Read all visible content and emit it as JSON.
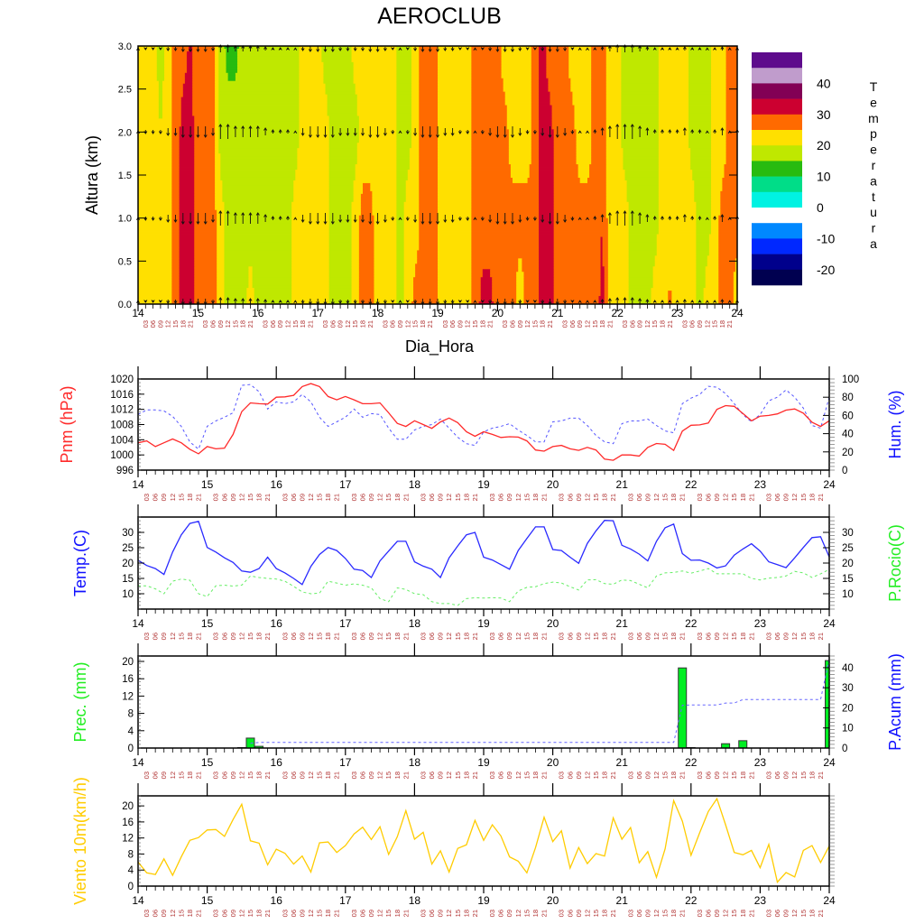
{
  "x_axis": {
    "days": [
      "14",
      "15",
      "16",
      "17",
      "18",
      "19",
      "20",
      "21",
      "22",
      "23",
      "24"
    ],
    "hours": [
      "03",
      "06",
      "09",
      "12",
      "15",
      "18",
      "21"
    ]
  },
  "colors": {
    "pnm": "#ff2a2a",
    "hum": "#5555ff",
    "temp": "#2a2aff",
    "dew": "#66ee66",
    "prec_bar": "#00ee22",
    "acum": "#6666ff",
    "wind": "#ffcc00",
    "hour_label": "#b03030"
  },
  "chart_data": [
    {
      "type": "heatmap",
      "title": "AEROCLUB",
      "xlabel": "Dia_Hora",
      "ylabel": "Altura (km)",
      "ylim": [
        0,
        3
      ],
      "ytick_labels": [
        "0.0",
        "0.5",
        "1.0",
        "1.5",
        "2.0",
        "2.5",
        "3.0"
      ],
      "levels_km": [
        0,
        1,
        2,
        3
      ],
      "temperature": [
        [
          22,
          22,
          22,
          22,
          22,
          27,
          32,
          32,
          27,
          27,
          27,
          22,
          18,
          18,
          18,
          22,
          18,
          18,
          18,
          18,
          18,
          22,
          22,
          22,
          22,
          22,
          18,
          18,
          18,
          22,
          27,
          27,
          22,
          22,
          22,
          18,
          22,
          27,
          27,
          27,
          25,
          22,
          22,
          22,
          22,
          27,
          32,
          32,
          27,
          27,
          27,
          22,
          27,
          27,
          32,
          32,
          27,
          27,
          27,
          27,
          27,
          27,
          32,
          22,
          22,
          22,
          18,
          18,
          18,
          22,
          22,
          26,
          22,
          22,
          22,
          18,
          22,
          22,
          27,
          27,
          22
        ],
        [
          22,
          22,
          22,
          22,
          22,
          27,
          32,
          32,
          27,
          27,
          27,
          22,
          18,
          18,
          18,
          18,
          18,
          18,
          18,
          18,
          18,
          22,
          22,
          22,
          22,
          22,
          18,
          18,
          18,
          22,
          27,
          27,
          22,
          22,
          22,
          18,
          22,
          22,
          27,
          27,
          25,
          22,
          22,
          22,
          22,
          27,
          27,
          27,
          27,
          27,
          27,
          27,
          27,
          27,
          32,
          32,
          27,
          27,
          27,
          27,
          27,
          27,
          30,
          22,
          22,
          22,
          18,
          18,
          18,
          18,
          22,
          22,
          22,
          22,
          22,
          18,
          18,
          22,
          27,
          27,
          27
        ],
        [
          22,
          22,
          22,
          20,
          22,
          27,
          32,
          32,
          27,
          27,
          27,
          18,
          18,
          18,
          18,
          18,
          18,
          18,
          18,
          18,
          18,
          18,
          22,
          22,
          22,
          22,
          18,
          18,
          18,
          18,
          22,
          22,
          22,
          22,
          22,
          18,
          18,
          22,
          27,
          27,
          25,
          22,
          22,
          22,
          22,
          27,
          27,
          27,
          27,
          27,
          22,
          22,
          22,
          27,
          32,
          32,
          27,
          27,
          27,
          22,
          22,
          27,
          27,
          22,
          22,
          18,
          18,
          18,
          18,
          18,
          22,
          22,
          22,
          22,
          18,
          18,
          18,
          22,
          22,
          27,
          27
        ],
        [
          22,
          22,
          22,
          18,
          22,
          28,
          28,
          31,
          27,
          27,
          27,
          18,
          13,
          13,
          18,
          18,
          18,
          18,
          18,
          18,
          18,
          18,
          22,
          22,
          22,
          18,
          18,
          18,
          18,
          22,
          22,
          22,
          22,
          22,
          22,
          18,
          18,
          22,
          27,
          27,
          25,
          22,
          22,
          22,
          22,
          27,
          27,
          27,
          27,
          22,
          22,
          22,
          22,
          27,
          32,
          27,
          27,
          27,
          22,
          22,
          22,
          27,
          27,
          22,
          22,
          18,
          18,
          18,
          18,
          18,
          22,
          22,
          22,
          22,
          18,
          18,
          18,
          22,
          22,
          27,
          27
        ]
      ],
      "wind_vertical": [
        0,
        -1,
        -1,
        -1,
        -2,
        -2,
        -3,
        -3,
        -3,
        -3,
        -2,
        4,
        4,
        3,
        3,
        3,
        3,
        2,
        1,
        1,
        1,
        0,
        -2,
        -3,
        -3,
        -3,
        -3,
        -2,
        -2,
        -2,
        -2,
        -3,
        -3,
        -2,
        -1,
        0,
        -1,
        -2,
        -3,
        -3,
        -3,
        -2,
        -2,
        -1,
        -1,
        0,
        -1,
        -2,
        -3,
        -3,
        -3,
        -2,
        -1,
        -1,
        -2,
        -3,
        -3,
        -2,
        -1,
        0,
        0,
        1,
        2,
        3,
        4,
        4,
        4,
        3,
        2,
        1,
        1,
        1,
        1,
        2,
        1,
        1,
        0,
        1,
        2,
        0,
        1
      ],
      "colorbar": {
        "label": "Temperatura",
        "colors": [
          "#5e0b8c",
          "#c09ccc",
          "#820055",
          "#cc0030",
          "#ff6a00",
          "#ffe000",
          "#bfe800",
          "#27bb10",
          "#00dd88",
          "#00f2e2",
          "#ffffff",
          "#0088ff",
          "#0028ff",
          "#00008c",
          "#000050"
        ],
        "bounds": [
          -20,
          -15,
          -10,
          -5,
          0,
          5,
          10,
          15,
          20,
          25,
          30,
          35,
          40,
          45
        ],
        "tick_labels": [
          "40",
          "30",
          "20",
          "10",
          "0",
          "-10",
          "-20"
        ]
      }
    },
    {
      "type": "line",
      "ylabel_left": "Pnm (hPa)",
      "ylabel_right": "Hum. (%)",
      "ylim_left": [
        996,
        1020
      ],
      "ylim_right": [
        0,
        100
      ],
      "yticks_left": [
        "996",
        "1000",
        "1004",
        "1008",
        "1012",
        "1016",
        "1020"
      ],
      "yticks_right": [
        "0",
        "20",
        "40",
        "60",
        "80",
        "100"
      ],
      "series": [
        {
          "name": "Pnm",
          "values": [
            1003.2,
            1003.7,
            1002.2,
            1003.2,
            1004.2,
            1003.2,
            1001.5,
            1000.3,
            1002.2,
            1001.6,
            1001.8,
            1005.4,
            1011.4,
            1013.7,
            1013.5,
            1013.4,
            1015.2,
            1015.3,
            1015.7,
            1018,
            1018.8,
            1018,
            1015.4,
            1014.5,
            1015.4,
            1014.5,
            1013.5,
            1013.5,
            1013.7,
            1011.1,
            1008.3,
            1007.5,
            1009,
            1008,
            1007,
            1008.7,
            1009.7,
            1008.5,
            1006.1,
            1004.9,
            1006.1,
            1005.4,
            1004.6,
            1004.8,
            1004.7,
            1003.7,
            1001.3,
            1001,
            1002.2,
            1002.5,
            1001.6,
            1001.2,
            1002,
            1001.3,
            998.9,
            998.6,
            1000,
            1000,
            999.7,
            1002,
            1003,
            1002.8,
            1001.2,
            1006.3,
            1007.8,
            1007.9,
            1008.4,
            1012,
            1013,
            1012.8,
            1010.9,
            1009,
            1010.2,
            1010.4,
            1010.8,
            1011.8,
            1012.1,
            1011,
            1008.6,
            1007.5,
            1009
          ]
        },
        {
          "name": "Hum",
          "values": [
            61,
            66,
            66,
            65,
            59,
            48,
            31,
            23,
            48,
            54,
            58,
            63,
            93,
            94,
            86,
            67,
            75,
            73,
            75,
            83,
            75,
            58,
            48,
            53,
            58,
            67,
            58,
            62,
            61,
            46,
            34,
            34,
            44,
            48,
            50,
            56,
            46,
            36,
            29,
            27,
            42,
            46,
            48,
            51,
            44,
            38,
            31,
            31,
            53,
            54,
            57,
            57,
            49,
            38,
            31,
            29,
            51,
            54,
            54,
            56,
            49,
            43,
            41,
            73,
            79,
            83,
            92,
            91,
            84,
            73,
            61,
            53,
            61,
            76,
            80,
            88,
            80,
            68,
            49,
            46,
            80
          ]
        }
      ]
    },
    {
      "type": "line",
      "ylabel_left": "Temp.(C)",
      "ylabel_right": "P.Rocio(C)",
      "ylim": [
        5,
        35
      ],
      "yticks_left": [
        "10",
        "15",
        "20",
        "25",
        "30"
      ],
      "yticks_right": [
        "10",
        "15",
        "20",
        "25",
        "30"
      ],
      "series": [
        {
          "name": "Temp",
          "values": [
            20.9,
            19.2,
            18.2,
            16.3,
            23.6,
            29.2,
            32.9,
            33.6,
            25.1,
            23.6,
            21.7,
            20.2,
            17.4,
            17,
            18.2,
            21.9,
            18.2,
            16.8,
            15,
            13,
            18.9,
            22.8,
            25.1,
            24.1,
            21.5,
            18,
            17.6,
            15.3,
            20.7,
            23.9,
            27.1,
            27.1,
            20.4,
            19,
            18,
            15.3,
            21.7,
            25.6,
            29.2,
            30,
            21.9,
            21,
            19.5,
            18,
            24.1,
            28,
            31.8,
            31.8,
            24.4,
            24.1,
            21.9,
            19.9,
            26.4,
            30.5,
            33.9,
            33.8,
            25.8,
            24.6,
            22.9,
            20.7,
            27.1,
            31.5,
            32.7,
            23.1,
            20.9,
            21,
            20,
            18.4,
            19.1,
            22.6,
            24.6,
            26.3,
            23.9,
            20.4,
            19.5,
            18.5,
            21.7,
            25.1,
            28.3,
            28.6,
            22
          ]
        },
        {
          "name": "P.Rocio",
          "values": [
            12.6,
            12.6,
            11.6,
            10,
            14.1,
            14.8,
            14.4,
            10,
            9.1,
            12.6,
            12.8,
            12.5,
            12.8,
            15.8,
            15.3,
            15,
            14.8,
            14.1,
            12.4,
            10.6,
            10,
            10.2,
            14.1,
            13.5,
            12.8,
            13.2,
            12.8,
            11.9,
            8.4,
            7.4,
            11.9,
            11.4,
            10,
            9.7,
            7.4,
            6.8,
            6.8,
            6.2,
            8.4,
            8.7,
            8.6,
            8.7,
            8.6,
            7.4,
            10.9,
            12.1,
            12.3,
            13.3,
            13.8,
            13.5,
            12.3,
            11.2,
            14.5,
            14.6,
            13.3,
            13.1,
            14.5,
            14.3,
            13.1,
            11.9,
            15.8,
            16.8,
            16.9,
            17.4,
            16.7,
            17.4,
            18.2,
            16.5,
            16.5,
            16.5,
            16.5,
            15,
            14.5,
            15.1,
            15.3,
            15.8,
            17.3,
            16.8,
            15.3,
            16.5,
            17.9
          ]
        }
      ]
    },
    {
      "type": "bar",
      "ylabel_left": "Prec. (mm)",
      "ylabel_right": "P.Acum (mm)",
      "ylim_left": [
        0,
        21.25
      ],
      "ylim_right": [
        0,
        45.8
      ],
      "yticks_left": [
        "0",
        "4",
        "8",
        "12",
        "16",
        "20"
      ],
      "yticks_right": [
        "0",
        "10",
        "20",
        "30",
        "40"
      ],
      "series": [
        {
          "name": "Prec",
          "values": [
            0,
            0,
            0,
            0,
            0,
            0,
            0,
            0,
            0,
            0,
            0,
            0,
            0.1,
            2.3,
            0.4,
            0,
            0,
            0,
            0,
            0,
            0,
            0,
            0,
            0,
            0,
            0,
            0,
            0,
            0,
            0,
            0,
            0,
            0,
            0,
            0,
            0,
            0,
            0,
            0,
            0,
            0,
            0,
            0,
            0,
            0,
            0,
            0,
            0,
            0,
            0,
            0,
            0,
            0,
            0,
            0,
            0,
            0,
            0,
            0,
            0,
            0,
            0,
            0,
            18.5,
            0.1,
            0,
            0,
            0,
            1.0,
            0,
            1.7,
            0,
            0,
            0,
            0,
            0,
            0,
            0,
            0,
            0,
            20.2
          ]
        },
        {
          "name": "P.Acum",
          "values": [
            null,
            null,
            null,
            null,
            null,
            null,
            null,
            null,
            null,
            null,
            null,
            null,
            null,
            2.4,
            2.8,
            2.8,
            2.8,
            2.8,
            2.8,
            2.8,
            2.8,
            2.8,
            2.8,
            2.8,
            2.8,
            2.8,
            2.8,
            2.8,
            2.8,
            2.8,
            2.8,
            2.8,
            2.8,
            2.8,
            2.8,
            2.8,
            2.8,
            2.8,
            2.8,
            2.8,
            2.8,
            2.8,
            2.8,
            2.8,
            2.8,
            2.8,
            2.8,
            2.8,
            2.8,
            2.8,
            2.8,
            2.8,
            2.8,
            2.8,
            2.8,
            2.8,
            2.8,
            2.8,
            2.8,
            2.8,
            2.8,
            2.8,
            2.8,
            21.3,
            21.4,
            21.4,
            21.4,
            21.4,
            22.4,
            22.4,
            24.1,
            24.1,
            24.1,
            24.1,
            24.1,
            24.1,
            24.1,
            24.1,
            24.1,
            24.1,
            44.3
          ]
        }
      ]
    },
    {
      "type": "line",
      "ylabel_left": "Viento 10m(km/h)",
      "ylim": [
        0,
        22.5
      ],
      "yticks_left": [
        "0",
        "4",
        "8",
        "12",
        "16",
        "20"
      ],
      "series": [
        {
          "name": "Viento",
          "values": [
            6,
            3.3,
            2.9,
            6.8,
            2.7,
            7.3,
            11.4,
            12.1,
            14,
            14.1,
            12.4,
            16.6,
            20.4,
            11.3,
            10.7,
            5.3,
            9.2,
            8.2,
            5.5,
            7.5,
            3.5,
            10.8,
            11,
            8.4,
            10.1,
            13,
            14.7,
            11.6,
            14.8,
            7.9,
            12.3,
            18.8,
            11.7,
            13.4,
            5.5,
            8.8,
            3.5,
            9.4,
            10.3,
            16.4,
            11.4,
            15.3,
            12.5,
            7.3,
            6.2,
            3.3,
            9.6,
            17.2,
            11.1,
            13.8,
            4.5,
            9.6,
            5.6,
            8.1,
            7.5,
            17,
            11.7,
            14.6,
            5.8,
            8.6,
            2.2,
            9.3,
            21.3,
            16.2,
            7.7,
            13.3,
            18.6,
            21.8,
            15.3,
            8.4,
            7.8,
            8.9,
            4.6,
            10.4,
            1,
            3.4,
            2.3,
            8.9,
            10.1,
            5.9,
            10
          ]
        }
      ]
    }
  ]
}
